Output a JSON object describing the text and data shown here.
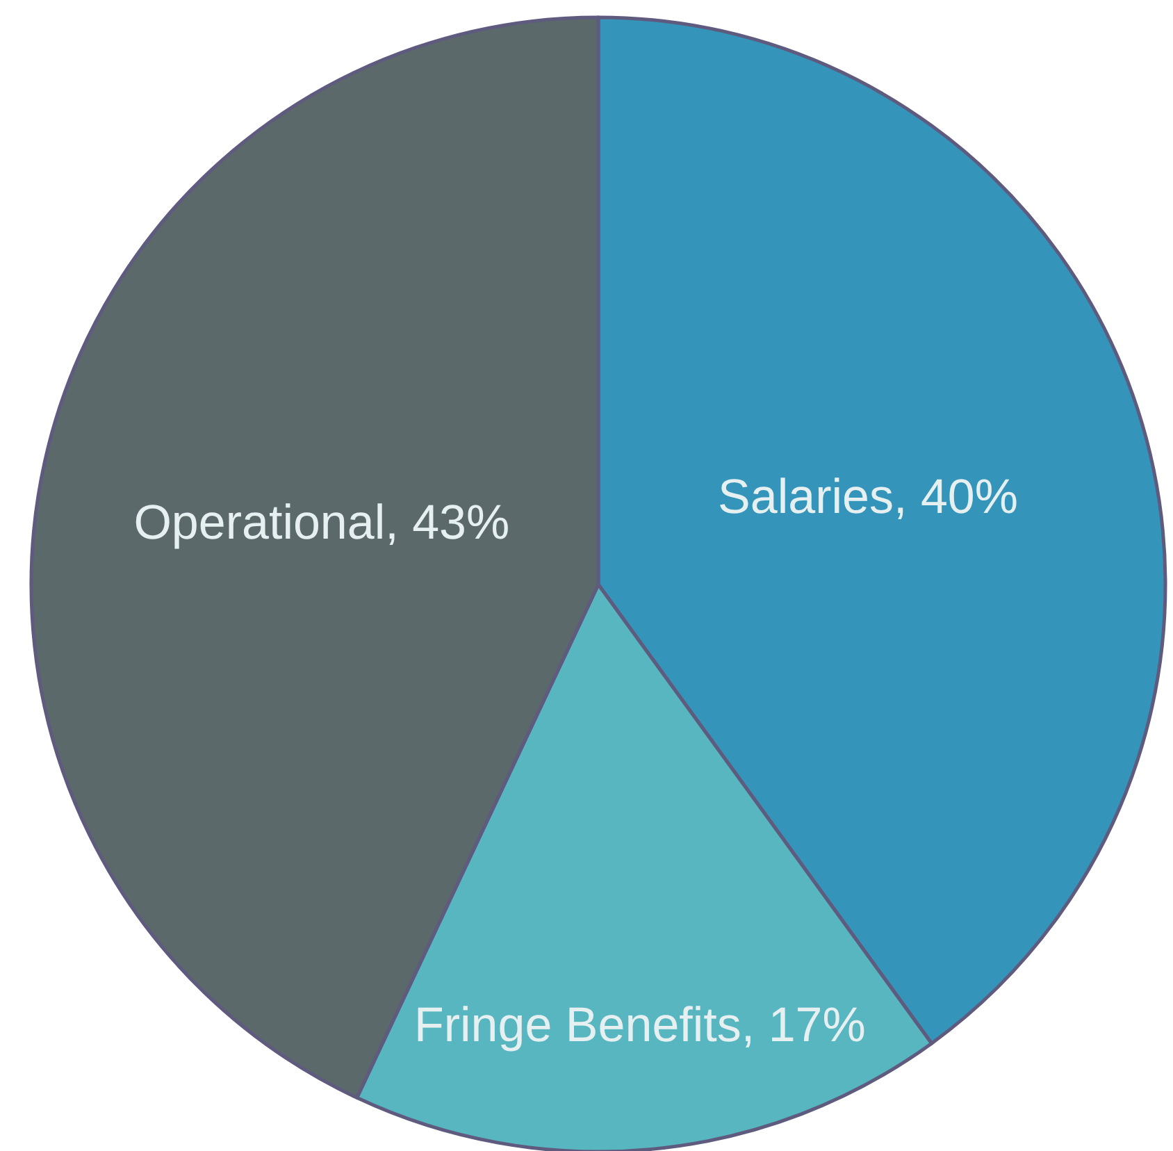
{
  "chart_data": {
    "type": "pie",
    "categories": [
      "Salaries",
      "Fringe Benefits",
      "Operational"
    ],
    "values": [
      40,
      17,
      43
    ],
    "colors": [
      "#3494ba",
      "#58b6c0",
      "#5c696b"
    ],
    "value_labels": [
      "40%",
      "17%",
      "43%"
    ]
  }
}
